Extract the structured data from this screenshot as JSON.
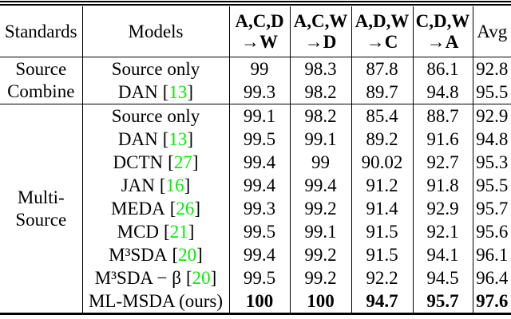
{
  "colors": {
    "text": "#000000",
    "citation_green": "#00f000",
    "rule": "#000000",
    "background": "#ffffff"
  },
  "punctuation": {
    "cite_open": "[",
    "cite_close": "]"
  },
  "header": {
    "standards": "Standards",
    "models": "Models",
    "transfer_columns": [
      {
        "sources": "A,C,D",
        "target": "→W"
      },
      {
        "sources": "A,C,W",
        "target": "→D"
      },
      {
        "sources": "A,D,W",
        "target": "→C"
      },
      {
        "sources": "C,D,W",
        "target": "→A"
      }
    ],
    "avg": "Avg"
  },
  "chart_data": {
    "type": "table",
    "title": "Multi-source domain adaptation accuracy (%)",
    "columns": [
      "Standards",
      "Models",
      "A,C,D→W",
      "A,C,W→D",
      "A,D,W→C",
      "C,D,W→A",
      "Avg"
    ],
    "rows": [
      [
        "Source Combine",
        "Source only",
        99,
        98.3,
        87.8,
        86.1,
        92.8
      ],
      [
        "Source Combine",
        "DAN [13]",
        99.3,
        98.2,
        89.7,
        94.8,
        95.5
      ],
      [
        "Multi-Source",
        "Source only",
        99.1,
        98.2,
        85.4,
        88.7,
        92.9
      ],
      [
        "Multi-Source",
        "DAN [13]",
        99.5,
        99.1,
        89.2,
        91.6,
        94.8
      ],
      [
        "Multi-Source",
        "DCTN [27]",
        99.4,
        99,
        90.02,
        92.7,
        95.3
      ],
      [
        "Multi-Source",
        "JAN [16]",
        99.4,
        99.4,
        91.2,
        91.8,
        95.5
      ],
      [
        "Multi-Source",
        "MEDA [26]",
        99.3,
        99.2,
        91.4,
        92.9,
        95.7
      ],
      [
        "Multi-Source",
        "MCD [21]",
        99.5,
        99.1,
        91.5,
        92.1,
        95.6
      ],
      [
        "Multi-Source",
        "M³SDA [20]",
        99.4,
        99.2,
        91.5,
        94.1,
        96.1
      ],
      [
        "Multi-Source",
        "M³SDA − β [20]",
        99.5,
        99.2,
        92.2,
        94.5,
        96.4
      ],
      [
        "Multi-Source",
        "ML-MSDA (ours)",
        100,
        100,
        94.7,
        95.7,
        97.6
      ]
    ]
  },
  "sections": [
    {
      "standard": {
        "line1": "Source",
        "line2": "Combine"
      },
      "rows": [
        {
          "model": "Source only",
          "cite": null,
          "values": [
            "99",
            "98.3",
            "87.8",
            "86.1",
            "92.8"
          ],
          "bold": false
        },
        {
          "model": "DAN",
          "cite": "13",
          "values": [
            "99.3",
            "98.2",
            "89.7",
            "94.8",
            "95.5"
          ],
          "bold": false
        }
      ]
    },
    {
      "standard": {
        "line1": "Multi-",
        "line2": "Source"
      },
      "rows": [
        {
          "model": "Source only",
          "cite": null,
          "values": [
            "99.1",
            "98.2",
            "85.4",
            "88.7",
            "92.9"
          ],
          "bold": false
        },
        {
          "model": "DAN",
          "cite": "13",
          "values": [
            "99.5",
            "99.1",
            "89.2",
            "91.6",
            "94.8"
          ],
          "bold": false
        },
        {
          "model": "DCTN",
          "cite": "27",
          "values": [
            "99.4",
            "99",
            "90.02",
            "92.7",
            "95.3"
          ],
          "bold": false
        },
        {
          "model": "JAN",
          "cite": "16",
          "values": [
            "99.4",
            "99.4",
            "91.2",
            "91.8",
            "95.5"
          ],
          "bold": false
        },
        {
          "model": "MEDA",
          "cite": "26",
          "values": [
            "99.3",
            "99.2",
            "91.4",
            "92.9",
            "95.7"
          ],
          "bold": false
        },
        {
          "model": "MCD",
          "cite": "21",
          "values": [
            "99.5",
            "99.1",
            "91.5",
            "92.1",
            "95.6"
          ],
          "bold": false
        },
        {
          "model": "M³SDA",
          "cite": "20",
          "values": [
            "99.4",
            "99.2",
            "91.5",
            "94.1",
            "96.1"
          ],
          "bold": false
        },
        {
          "model": "M³SDA − β",
          "cite": "20",
          "values": [
            "99.5",
            "99.2",
            "92.2",
            "94.5",
            "96.4"
          ],
          "bold": false
        },
        {
          "model": "ML-MSDA (ours)",
          "cite": null,
          "values": [
            "100",
            "100",
            "94.7",
            "95.7",
            "97.6"
          ],
          "bold": true
        }
      ]
    }
  ]
}
